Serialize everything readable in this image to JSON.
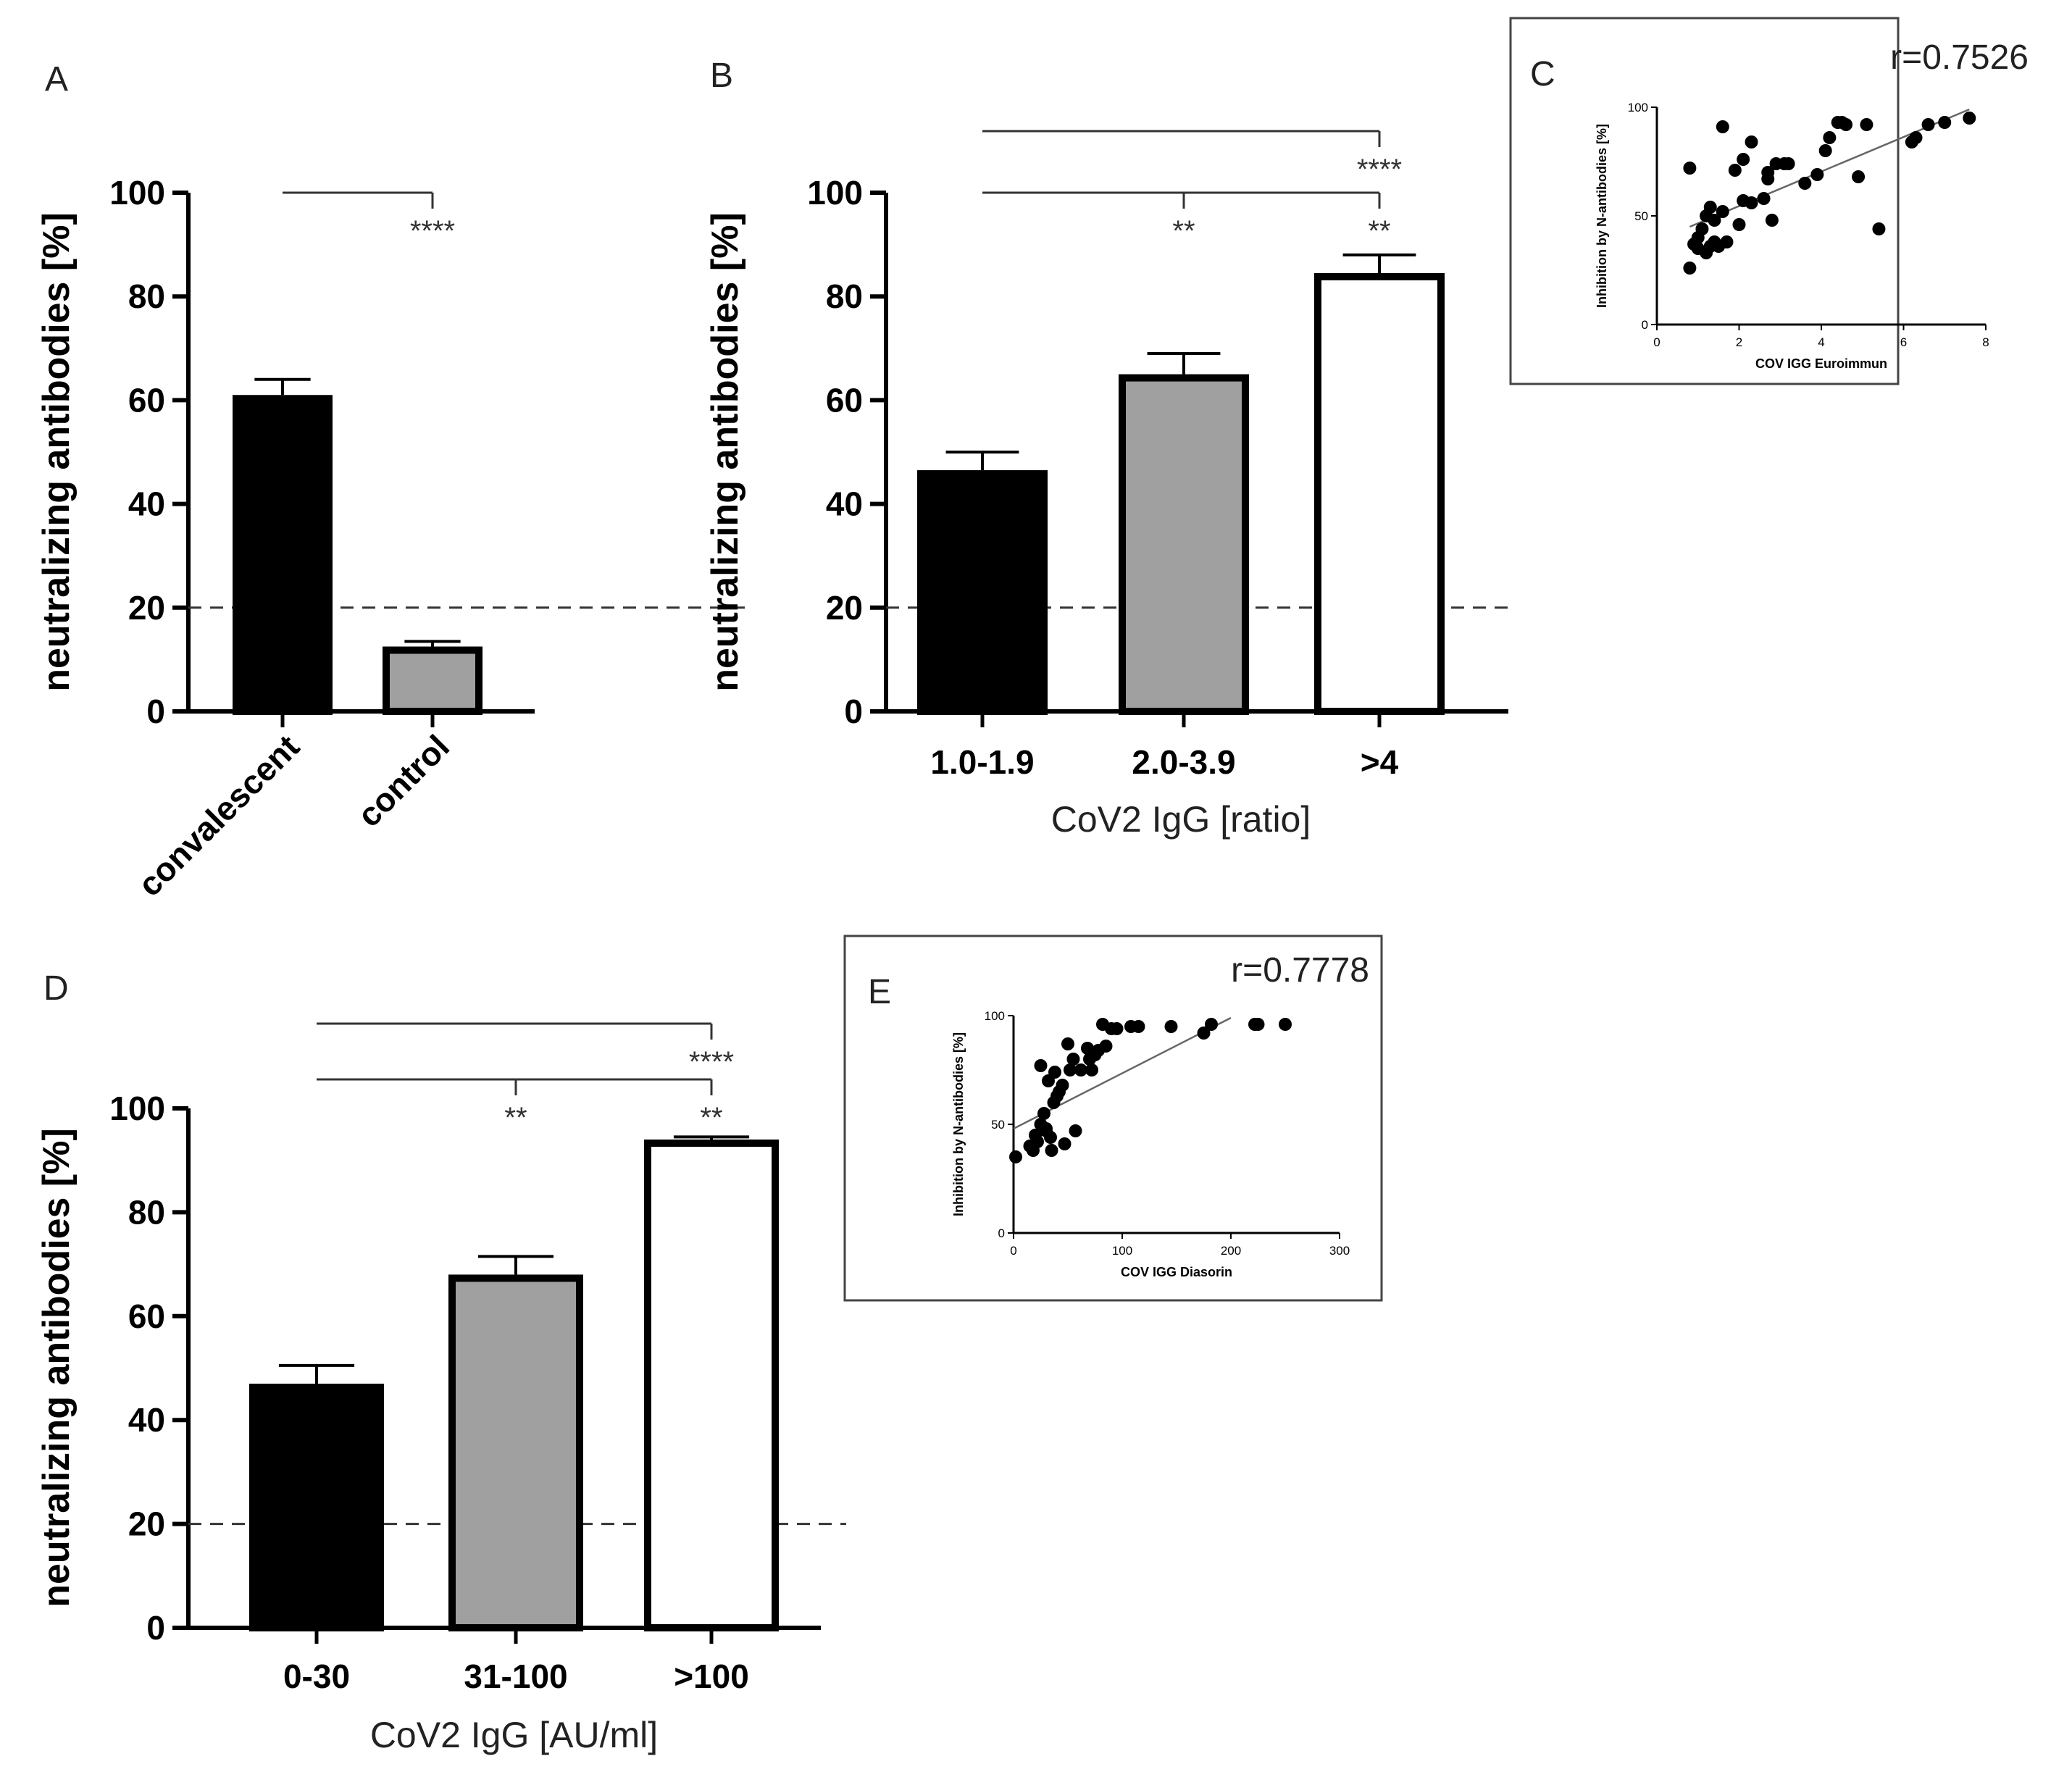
{
  "chart_data": [
    {
      "id": "A",
      "type": "bar",
      "panel_label": "A",
      "title": "",
      "ylabel": "neutralizing antibodies [%]",
      "xlabel": "",
      "ylim": [
        0,
        100
      ],
      "yticks": [
        "0",
        "20",
        "40",
        "60",
        "80",
        "100"
      ],
      "categories": [
        "convalescent",
        "control"
      ],
      "values": [
        61,
        12.5
      ],
      "errors": [
        3,
        1
      ],
      "bar_colors": [
        "#000000",
        "#a0a0a0"
      ],
      "threshold": 20,
      "brackets": [
        {
          "from": 0,
          "to": 1,
          "label": "****"
        }
      ]
    },
    {
      "id": "B",
      "type": "bar",
      "panel_label": "B",
      "title": "",
      "ylabel": "neutralizing antibodies [%]",
      "xlabel": "CoV2 IgG [ratio]",
      "ylim": [
        0,
        100
      ],
      "yticks": [
        "0",
        "20",
        "40",
        "60",
        "80",
        "100"
      ],
      "categories": [
        "1.0-1.9",
        "2.0-3.9",
        ">4"
      ],
      "values": [
        46.5,
        65,
        84.5
      ],
      "errors": [
        3.5,
        4,
        3.5
      ],
      "bar_colors": [
        "#000000",
        "#a0a0a0",
        "#ffffff"
      ],
      "threshold": 20,
      "brackets": [
        {
          "from": 0,
          "to": 2,
          "label": "****",
          "level": 2
        },
        {
          "from": 0,
          "to": 1,
          "label": "**",
          "level": 1
        },
        {
          "from": 1,
          "to": 2,
          "label": "**",
          "level": 1
        }
      ]
    },
    {
      "id": "C",
      "type": "scatter",
      "panel_label": "C",
      "title": "r=0.7526",
      "xlabel": "COV IGG Euroimmun",
      "ylabel": "Inhibition by N-antibodies [%]",
      "xlim": [
        0,
        8
      ],
      "ylim": [
        0,
        100
      ],
      "xticks": [
        "0",
        "2",
        "4",
        "6",
        "8"
      ],
      "yticks": [
        "0",
        "50",
        "100"
      ],
      "x": [
        0.8,
        0.8,
        0.9,
        1.0,
        1.0,
        1.1,
        1.2,
        1.2,
        1.3,
        1.3,
        1.4,
        1.4,
        1.5,
        1.6,
        1.6,
        1.7,
        1.9,
        2.0,
        2.1,
        2.1,
        2.3,
        2.3,
        2.6,
        2.7,
        2.7,
        2.8,
        2.9,
        3.1,
        3.2,
        3.6,
        3.9,
        4.1,
        4.2,
        4.4,
        4.5,
        4.6,
        4.9,
        5.1,
        5.4,
        6.2,
        6.3,
        6.6,
        7.0,
        7.6
      ],
      "y": [
        26,
        72,
        37,
        35,
        40,
        44,
        33,
        50,
        36,
        54,
        48,
        38,
        36,
        91,
        52,
        38,
        71,
        46,
        76,
        57,
        84,
        56,
        58,
        67,
        70,
        48,
        74,
        74,
        74,
        65,
        69,
        80,
        86,
        93,
        93,
        92,
        68,
        92,
        44,
        84,
        86,
        92,
        93,
        95
      ],
      "fit": {
        "x": [
          0.8,
          7.6
        ],
        "y": [
          45,
          99
        ]
      }
    },
    {
      "id": "D",
      "type": "bar",
      "panel_label": "D",
      "title": "",
      "ylabel": "neutralizing antibodies [%]",
      "xlabel": "CoV2 IgG [AU/ml]",
      "ylim": [
        0,
        100
      ],
      "yticks": [
        "0",
        "20",
        "40",
        "60",
        "80",
        "100"
      ],
      "categories": [
        "0-30",
        "31-100",
        ">100"
      ],
      "values": [
        47,
        68,
        94
      ],
      "errors": [
        3.5,
        3.5,
        0.5
      ],
      "bar_colors": [
        "#000000",
        "#a0a0a0",
        "#ffffff"
      ],
      "threshold": 20,
      "brackets": [
        {
          "from": 0,
          "to": 2,
          "label": "****",
          "level": 2
        },
        {
          "from": 0,
          "to": 1,
          "label": "**",
          "level": 1
        },
        {
          "from": 1,
          "to": 2,
          "label": "**",
          "level": 1
        }
      ]
    },
    {
      "id": "E",
      "type": "scatter",
      "panel_label": "E",
      "title": "r=0.7778",
      "xlabel": "COV IGG Diasorin",
      "ylabel": "Inhibition by N-antibodies [%]",
      "xlim": [
        0,
        300
      ],
      "ylim": [
        0,
        100
      ],
      "xticks": [
        "0",
        "100",
        "200",
        "300"
      ],
      "yticks": [
        "0",
        "50",
        "100"
      ],
      "x": [
        2,
        15,
        18,
        20,
        22,
        25,
        25,
        28,
        30,
        30,
        32,
        34,
        35,
        37,
        38,
        40,
        42,
        45,
        47,
        50,
        52,
        55,
        57,
        62,
        68,
        70,
        72,
        75,
        78,
        82,
        85,
        90,
        95,
        108,
        115,
        145,
        175,
        182,
        222,
        225,
        250
      ],
      "y": [
        35,
        40,
        38,
        45,
        42,
        50,
        77,
        55,
        48,
        47,
        70,
        44,
        38,
        60,
        74,
        63,
        65,
        68,
        41,
        87,
        75,
        80,
        47,
        75,
        85,
        80,
        75,
        82,
        84,
        96,
        86,
        94,
        94,
        95,
        95,
        95,
        92,
        96,
        96,
        96,
        96
      ],
      "fit": {
        "x": [
          0,
          200
        ],
        "y": [
          48,
          99
        ]
      }
    }
  ]
}
